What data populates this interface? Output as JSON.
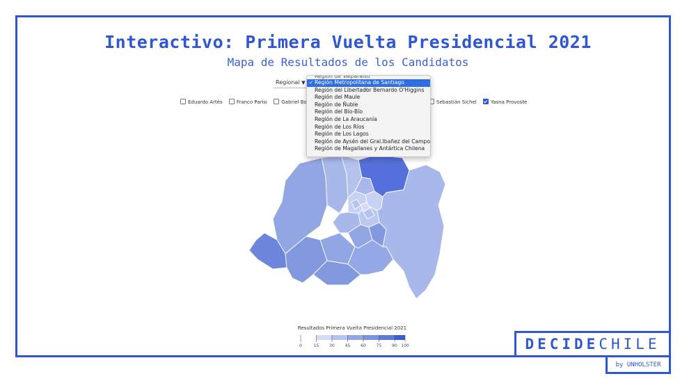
{
  "header": {
    "title": "Interactivo: Primera Vuelta Presidencial 2021",
    "subtitle": "Mapa de Resultados de los Candidatos"
  },
  "level_select": {
    "value": "Regional"
  },
  "candidates": [
    {
      "label": "Eduardo Artés",
      "checked": false
    },
    {
      "label": "Franco Parisi",
      "checked": false
    },
    {
      "label": "Gabriel Boric",
      "checked": false
    },
    {
      "label": "Sebastián Sichel",
      "checked": false
    },
    {
      "label": "Yasna Provoste",
      "checked": true
    }
  ],
  "region_dropdown": {
    "partial_item": "Región de Valparaíso",
    "selected_index": 0,
    "items": [
      "Región Metropolitana de Santiago",
      "Región del Libertador Bernardo O'Higgins",
      "Región del Maule",
      "Región de Ñuble",
      "Región del Bío-Bío",
      "Región de La Araucanía",
      "Región de Los Ríos",
      "Región de Los Lagos",
      "Región de Aysén del Gral.Ibañez del Campo",
      "Región de Magallanes y Antártica Chilena"
    ]
  },
  "legend": {
    "title": "Resultados Primera Vuelta Presidencial 2021",
    "ticks": [
      "0",
      "15",
      "30",
      "45",
      "60",
      "75",
      "90",
      "100"
    ],
    "colors": [
      "#ffffff",
      "#d4dcf4",
      "#b4c2ee",
      "#95a8e6",
      "#7a92e0",
      "#5e7ad8",
      "#3a5fd2"
    ]
  },
  "map": {
    "region": "Región Metropolitana de Santiago",
    "fill_scale": [
      "#c7d1f2",
      "#a9b8ea",
      "#93a6e4",
      "#8399df",
      "#6d86dc",
      "#5570da"
    ]
  },
  "brand": {
    "strong": "DECIDE",
    "light": "CHILE",
    "byline": "by UNHOLSTER"
  },
  "colors": {
    "accent": "#2f57d0",
    "dropdown_highlight": "#2f6fe0"
  }
}
